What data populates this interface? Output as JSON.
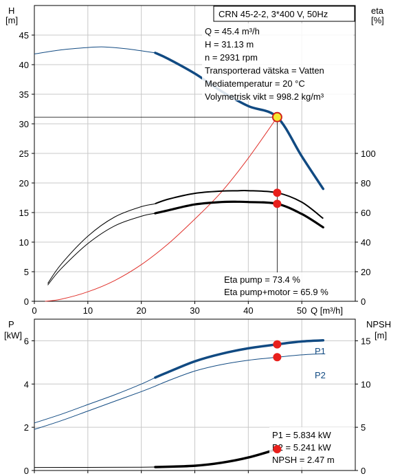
{
  "chart_data": [
    {
      "type": "line",
      "panel": "head-efficiency",
      "title": "CRN 45-2-2, 3*400 V, 50Hz",
      "left_axis": {
        "label": "H",
        "unit": "[m]",
        "ticks": [
          0,
          5,
          10,
          15,
          20,
          25,
          30,
          35,
          40,
          45
        ],
        "range": [
          0,
          50
        ]
      },
      "right_axis": {
        "label": "eta",
        "unit": "[%]",
        "ticks": [
          0,
          20,
          40,
          60,
          80,
          100
        ],
        "range": [
          0,
          200
        ]
      },
      "x_axis": {
        "label": "Q [m³/h]",
        "ticks": [
          0,
          10,
          20,
          30,
          40,
          50
        ],
        "range": [
          0,
          60
        ]
      },
      "info_lines": [
        "Q = 45.4 m³/h",
        "H = 31.13 m",
        "n = 2931 rpm",
        "Transporterad vätska = Vatten",
        "Mediatemperatur = 20 °C",
        "Volymetrisk vikt = 998.2 kg/m³"
      ],
      "eta_lines": [
        "Eta pump = 73.4 %",
        "Eta pump+motor = 65.9 %"
      ],
      "series": [
        {
          "id": "h_curve",
          "axis": "left",
          "x": [
            0,
            5,
            10,
            13,
            17,
            22.6,
            25,
            30,
            35,
            40,
            45.4,
            50,
            54
          ],
          "y": [
            41.8,
            42.5,
            42.9,
            43.0,
            42.7,
            42.0,
            41.0,
            38.5,
            35.5,
            33.0,
            31.13,
            24.5,
            19.0
          ],
          "bold_from": 22.6
        },
        {
          "id": "eta_pump",
          "axis": "right",
          "x": [
            2.5,
            5,
            10,
            15,
            20,
            22.6,
            25,
            30,
            35,
            38,
            40,
            45.4,
            50,
            54
          ],
          "y": [
            12,
            25,
            44,
            57,
            64,
            66,
            69,
            73,
            74.5,
            74.7,
            74.8,
            73.4,
            67,
            56
          ]
        },
        {
          "id": "eta_pump_motor",
          "axis": "right",
          "x": [
            2.5,
            5,
            10,
            15,
            20,
            22.6,
            25,
            30,
            35,
            38,
            40,
            45.4,
            50,
            54
          ],
          "y": [
            11,
            22,
            39,
            51,
            57.5,
            59.5,
            61.5,
            65.5,
            67.1,
            67.3,
            67.1,
            65.9,
            59,
            50
          ],
          "bold_from": 22.6
        },
        {
          "id": "system_curve",
          "axis": "left",
          "x": [
            2,
            5,
            10,
            15,
            20,
            25,
            30,
            35,
            40,
            45.4
          ],
          "y": [
            0,
            0.35,
            1.6,
            3.5,
            6.2,
            9.7,
            13.9,
            18.5,
            24.2,
            31.13
          ]
        }
      ],
      "operating_point": {
        "x": 45.4,
        "h": 31.13,
        "eta_pump": 73.4,
        "eta_pump_motor": 65.9
      }
    },
    {
      "type": "line",
      "panel": "power-npsh",
      "left_axis": {
        "label": "P",
        "unit": "[kW]",
        "ticks": [
          0,
          2,
          4,
          6
        ],
        "range": [
          0,
          7
        ]
      },
      "right_axis": {
        "label": "NPSH",
        "unit": "[m]",
        "ticks": [
          0,
          5,
          10,
          15
        ],
        "range": [
          0,
          17.5
        ]
      },
      "series": [
        {
          "name": "P1",
          "axis": "left",
          "x": [
            0,
            5,
            10,
            15,
            20,
            22.6,
            25,
            30,
            35,
            40,
            45.4,
            50,
            54
          ],
          "y": [
            2.2,
            2.6,
            3.05,
            3.5,
            4.0,
            4.3,
            4.55,
            5.05,
            5.4,
            5.65,
            5.834,
            5.97,
            6.02
          ],
          "bold_from": 22.6
        },
        {
          "name": "P2",
          "axis": "left",
          "x": [
            0,
            5,
            10,
            15,
            20,
            22.6,
            25,
            30,
            35,
            40,
            45.4,
            50,
            54
          ],
          "y": [
            1.9,
            2.3,
            2.75,
            3.2,
            3.65,
            3.9,
            4.15,
            4.6,
            4.9,
            5.1,
            5.241,
            5.35,
            5.4
          ]
        },
        {
          "id": "npsh",
          "axis": "right",
          "x": [
            0,
            10,
            20,
            22.6,
            30,
            35,
            40,
            45.4
          ],
          "y": [
            0.35,
            0.36,
            0.38,
            0.4,
            0.55,
            0.9,
            1.5,
            2.47
          ],
          "bold_from": 22.6
        }
      ],
      "values_lines": [
        "P1 = 5.834 kW",
        "P2 = 5.241 kW",
        "NPSH = 2.47 m"
      ],
      "operating_point": {
        "x": 45.4,
        "p1": 5.834,
        "p2": 5.241,
        "npsh": 2.47
      }
    }
  ],
  "colors": {
    "curve": "#114a82",
    "system": "#e0302a",
    "marker": "#e8201c",
    "marker_op": "#f5e830",
    "marker_op_stroke": "#d0201a",
    "grid": "#c8c8c8"
  }
}
